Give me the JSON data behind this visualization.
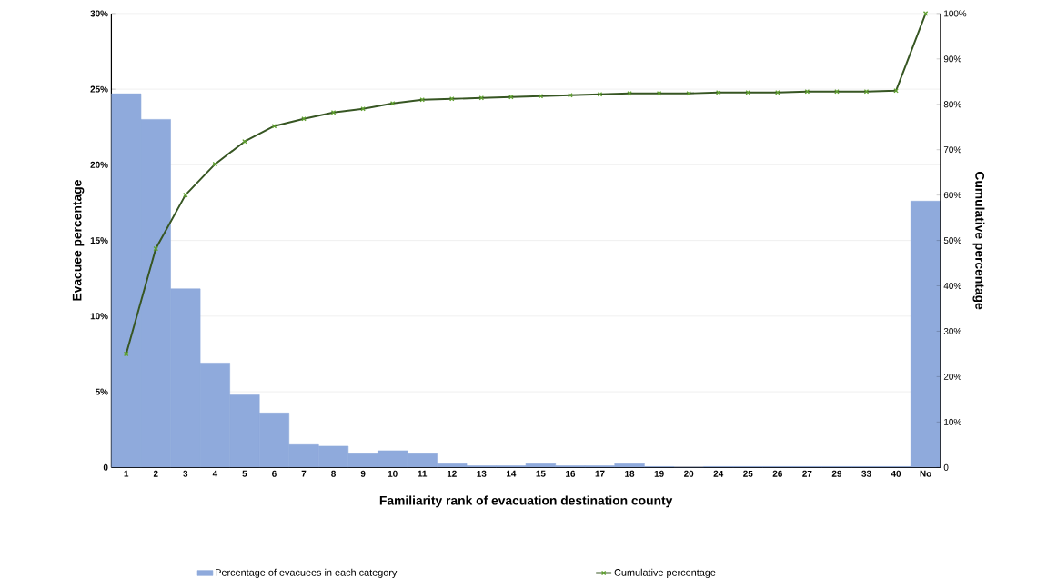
{
  "chart_data": {
    "type": "bar",
    "xlabel": "Familiarity rank of evacuation destination county",
    "ylabel": "Evacuee percentage",
    "y2label": "Cumulative percentage",
    "categories": [
      "1",
      "2",
      "3",
      "4",
      "5",
      "6",
      "7",
      "8",
      "9",
      "10",
      "11",
      "12",
      "13",
      "14",
      "15",
      "16",
      "17",
      "18",
      "19",
      "20",
      "24",
      "25",
      "26",
      "27",
      "29",
      "33",
      "40",
      "No"
    ],
    "series": [
      {
        "name": "Percentage of evacuees in each category",
        "color": "#8faadc",
        "values": [
          24.7,
          23.0,
          11.8,
          6.9,
          4.8,
          3.6,
          1.5,
          1.4,
          0.9,
          1.1,
          0.9,
          0.25,
          0.1,
          0.1,
          0.25,
          0.1,
          0.1,
          0.25,
          0.05,
          0,
          0.05,
          0.05,
          0.05,
          0.05,
          0.05,
          0.05,
          0.05,
          17.6
        ]
      },
      {
        "name": "Cumulative percentage",
        "type": "line",
        "axis": "y2",
        "color": "#375623",
        "marker": "cross",
        "line_style": "solid",
        "values": [
          25,
          48.2,
          60,
          66.8,
          71.8,
          75.2,
          76.8,
          78.2,
          79,
          80.2,
          81,
          81.2,
          81.4,
          81.6,
          81.8,
          82,
          82.2,
          82.4,
          82.4,
          82.4,
          82.6,
          82.6,
          82.6,
          82.8,
          82.8,
          82.8,
          83,
          100
        ]
      }
    ],
    "ylim": [
      0,
      30
    ],
    "yticks": [
      0,
      {
        "value": 5,
        "label": "5%"
      },
      {
        "value": 10,
        "label": "10%"
      },
      {
        "value": 15,
        "label": "15%"
      },
      {
        "value": 20,
        "label": "20%"
      },
      {
        "value": 25,
        "label": "25%"
      },
      {
        "value": 30,
        "label": "30%"
      }
    ],
    "y2lim": [
      0,
      100
    ],
    "y2ticks": [
      0,
      {
        "value": 10,
        "label": "10%"
      },
      {
        "value": 20,
        "label": "20%"
      },
      {
        "value": 30,
        "label": "30%"
      },
      {
        "value": 40,
        "label": "40%"
      },
      {
        "value": 50,
        "label": "50%"
      },
      {
        "value": 60,
        "label": "60%"
      },
      {
        "value": 70,
        "label": "70%"
      },
      {
        "value": 80,
        "label": "80%"
      },
      {
        "value": 90,
        "label": "90%"
      },
      {
        "value": 100,
        "label": "100%"
      }
    ],
    "grid": "y",
    "legend": "bottom"
  }
}
